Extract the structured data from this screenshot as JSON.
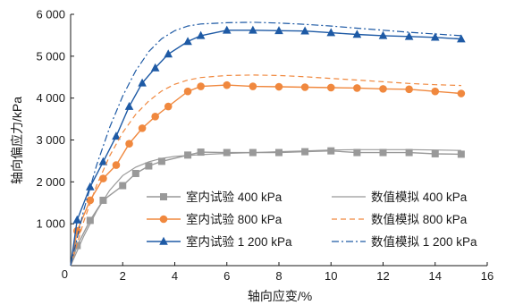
{
  "chart_data": {
    "type": "line",
    "xlabel": "轴向应变/%",
    "ylabel": "轴向偏应力/kPa",
    "xlim": [
      0,
      16
    ],
    "ylim": [
      0,
      6000
    ],
    "xticks": [
      2,
      4,
      6,
      8,
      10,
      12,
      14,
      16
    ],
    "xtick_labels": [
      "2",
      "4",
      "6",
      "8",
      "10",
      "12",
      "14",
      "16"
    ],
    "origin_label": "0",
    "yticks": [
      1000,
      2000,
      3000,
      4000,
      5000,
      6000
    ],
    "ytick_labels": [
      "1 000",
      "2 000",
      "3 000",
      "4 000",
      "5 000",
      "6 000"
    ],
    "grid": false,
    "legend_position": "lower-right",
    "series": [
      {
        "name": "室内试验 400 kPa",
        "kind": "test",
        "color": "#999999",
        "marker": "square",
        "x": [
          0,
          0.25,
          0.75,
          1.25,
          2,
          2.5,
          3,
          3.5,
          4.5,
          5,
          6,
          7,
          8,
          9,
          10,
          11,
          12,
          13,
          14,
          15
        ],
        "y": [
          0,
          480,
          1080,
          1560,
          1910,
          2200,
          2380,
          2490,
          2640,
          2710,
          2700,
          2700,
          2700,
          2720,
          2740,
          2700,
          2700,
          2700,
          2670,
          2660
        ]
      },
      {
        "name": "室内试验 800 kPa",
        "kind": "test",
        "color": "#f0883e",
        "marker": "circle",
        "x": [
          0,
          0.25,
          0.75,
          1.25,
          1.75,
          2.25,
          2.75,
          3.25,
          3.75,
          4.5,
          5,
          6,
          7,
          8,
          9,
          10,
          11,
          12,
          13,
          14,
          15
        ],
        "y": [
          0,
          830,
          1560,
          2080,
          2400,
          2910,
          3280,
          3560,
          3800,
          4160,
          4280,
          4310,
          4280,
          4270,
          4260,
          4250,
          4240,
          4220,
          4210,
          4160,
          4110
        ]
      },
      {
        "name": "室内试验 1 200 kPa",
        "kind": "test",
        "color": "#1e5aa5",
        "marker": "triangle",
        "x": [
          0,
          0.25,
          0.75,
          1.25,
          1.75,
          2.25,
          2.75,
          3.25,
          3.75,
          4.5,
          5,
          6,
          7,
          8,
          9,
          10,
          11,
          12,
          13,
          14,
          15
        ],
        "y": [
          0,
          1090,
          1880,
          2480,
          3090,
          3800,
          4360,
          4720,
          5050,
          5350,
          5490,
          5620,
          5620,
          5610,
          5600,
          5560,
          5520,
          5490,
          5470,
          5450,
          5410
        ]
      },
      {
        "name": "数值模拟 400 kPa",
        "kind": "sim",
        "color": "#999999",
        "dash": "solid",
        "x": [
          0,
          0.5,
          1,
          1.5,
          2,
          2.5,
          3,
          3.5,
          4,
          5,
          6,
          7,
          8,
          9,
          10,
          11,
          12,
          13,
          14,
          15
        ],
        "y": [
          0,
          700,
          1300,
          1800,
          2150,
          2350,
          2480,
          2560,
          2610,
          2650,
          2680,
          2700,
          2720,
          2740,
          2760,
          2770,
          2770,
          2770,
          2760,
          2750
        ]
      },
      {
        "name": "数值模拟 800 kPa",
        "kind": "sim",
        "color": "#f0883e",
        "dash": "dashed",
        "x": [
          0,
          0.5,
          1,
          1.5,
          2,
          2.5,
          3,
          3.5,
          4,
          4.5,
          5,
          6,
          7,
          8,
          9,
          10,
          11,
          12,
          13,
          14,
          15
        ],
        "y": [
          0,
          1050,
          1920,
          2620,
          3180,
          3610,
          3930,
          4170,
          4330,
          4430,
          4490,
          4540,
          4550,
          4540,
          4510,
          4470,
          4430,
          4390,
          4350,
          4320,
          4300
        ]
      },
      {
        "name": "数值模拟 1 200 kPa",
        "kind": "sim",
        "color": "#1e5aa5",
        "dash": "dashdot",
        "x": [
          0,
          0.5,
          1,
          1.5,
          2,
          2.5,
          3,
          3.5,
          4,
          4.5,
          5,
          6,
          7,
          8,
          9,
          10,
          11,
          12,
          13,
          14,
          15
        ],
        "y": [
          0,
          1320,
          2400,
          3300,
          4050,
          4650,
          5110,
          5420,
          5610,
          5720,
          5770,
          5800,
          5810,
          5790,
          5760,
          5720,
          5670,
          5620,
          5570,
          5530,
          5490
        ]
      }
    ]
  }
}
